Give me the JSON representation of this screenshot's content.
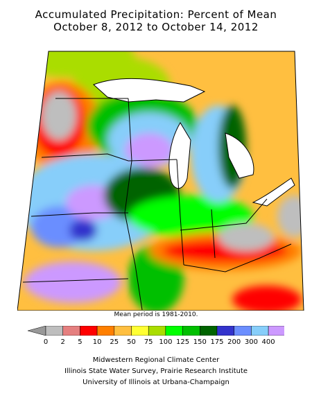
{
  "title_line1": "Accumulated Precipitation: Percent of Mean",
  "title_line2": "October 8, 2012 to October 14, 2012",
  "mean_period_note": "Mean period is 1981-2010.",
  "legend": {
    "colors": [
      "#bebebe",
      "#e57f7f",
      "#ff0000",
      "#ff7f00",
      "#ffbf40",
      "#ffff33",
      "#aadd00",
      "#00ff00",
      "#00bf00",
      "#006400",
      "#3333cc",
      "#6b8eff",
      "#87cefa",
      "#cc99ff"
    ],
    "labels": [
      "0",
      "2",
      "5",
      "10",
      "25",
      "50",
      "75",
      "100",
      "125",
      "150",
      "175",
      "200",
      "300",
      "400"
    ]
  },
  "credits": {
    "line1": "Midwestern Regional Climate Center",
    "line2": "Illinois State Water Survey, Prairie Research Institute",
    "line3": "University of Illinois at Urbana-Champaign"
  }
}
